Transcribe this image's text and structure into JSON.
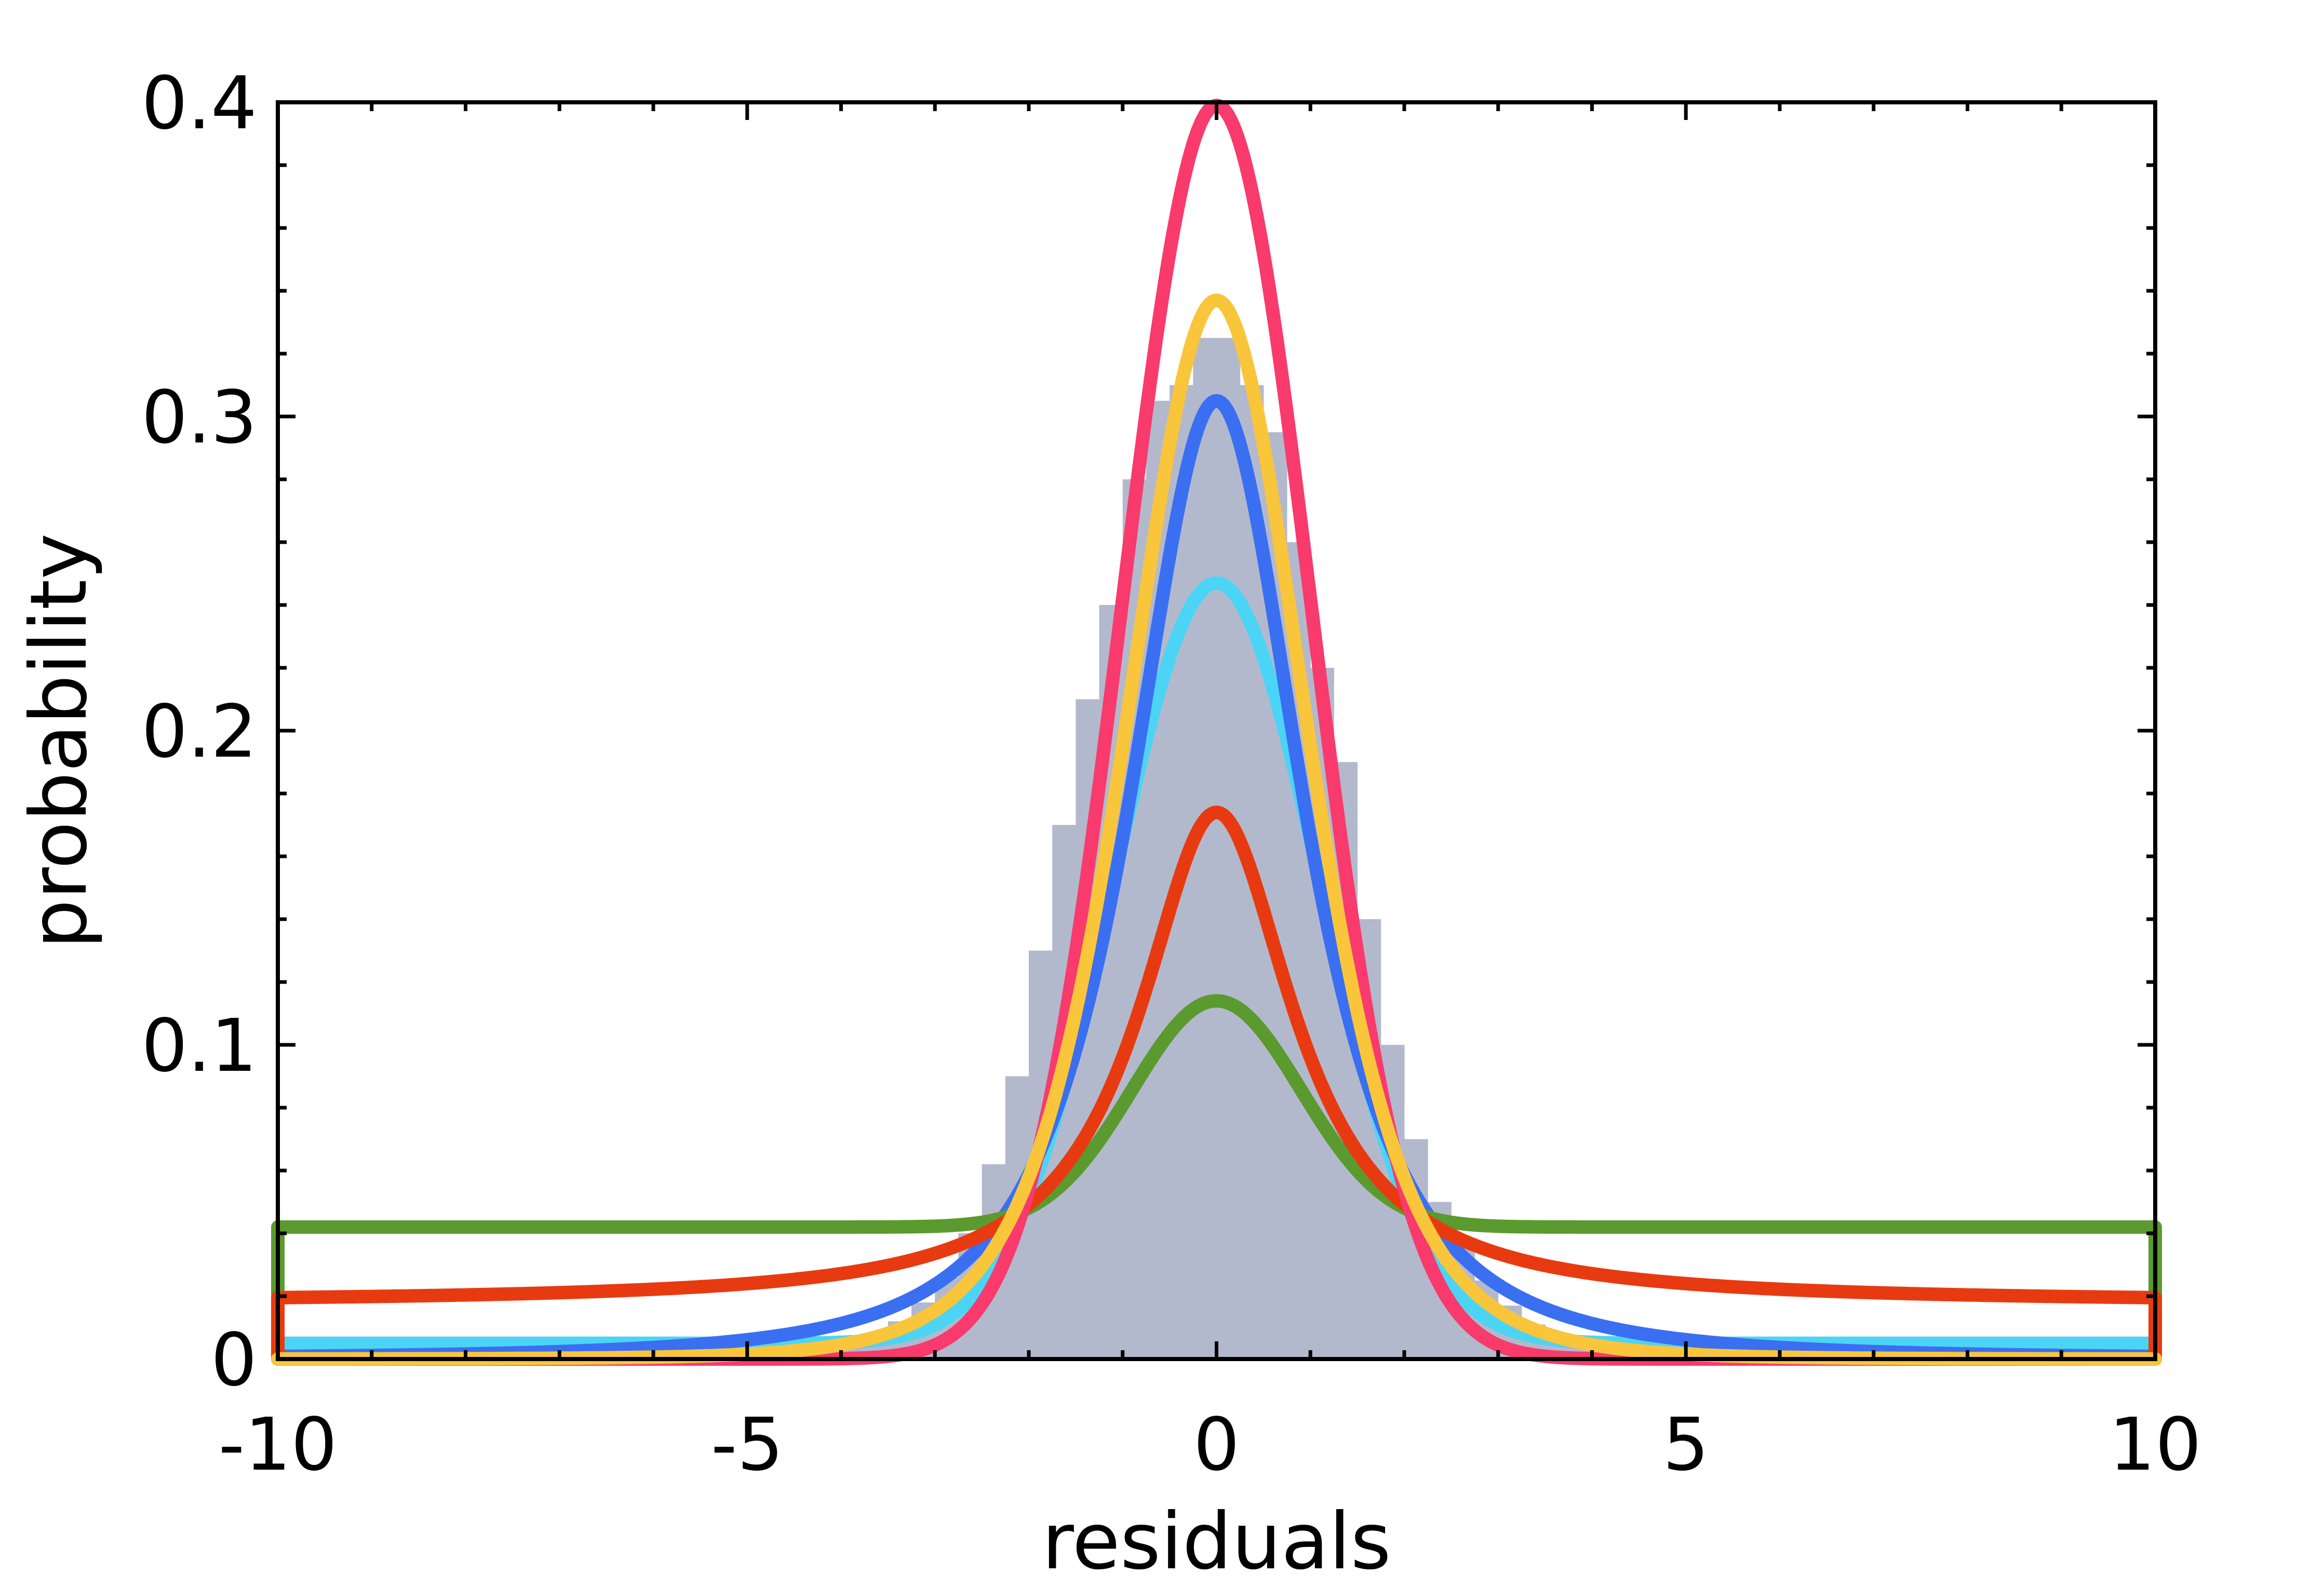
{
  "chart_data": {
    "type": "line",
    "title": "",
    "xlabel": "residuals",
    "ylabel": "probability",
    "xlim": [
      -10,
      10
    ],
    "ylim": [
      0,
      0.4
    ],
    "x_ticks": [
      {
        "value": -10,
        "label": "-10"
      },
      {
        "value": -5,
        "label": "-5"
      },
      {
        "value": 0,
        "label": "0"
      },
      {
        "value": 5,
        "label": "5"
      },
      {
        "value": 10,
        "label": "10"
      }
    ],
    "y_ticks": [
      {
        "value": 0,
        "label": "0"
      },
      {
        "value": 0.1,
        "label": "0.1"
      },
      {
        "value": 0.2,
        "label": "0.2"
      },
      {
        "value": 0.3,
        "label": "0.3"
      },
      {
        "value": 0.4,
        "label": "0.4"
      }
    ],
    "grid": false,
    "legend": "none",
    "histogram": {
      "color": "#b3b9cc",
      "bin_width": 0.25,
      "bin_centers": [
        -4.125,
        -3.875,
        -3.625,
        -3.375,
        -3.125,
        -2.875,
        -2.625,
        -2.375,
        -2.125,
        -1.875,
        -1.625,
        -1.375,
        -1.125,
        -0.875,
        -0.625,
        -0.375,
        -0.125,
        0.125,
        0.375,
        0.625,
        0.875,
        1.125,
        1.375,
        1.625,
        1.875,
        2.125,
        2.375,
        2.625,
        2.875,
        3.125,
        3.375,
        3.625,
        3.875,
        4.125
      ],
      "values": [
        0.003,
        0.005,
        0.008,
        0.012,
        0.018,
        0.026,
        0.04,
        0.062,
        0.09,
        0.13,
        0.17,
        0.21,
        0.24,
        0.28,
        0.305,
        0.31,
        0.325,
        0.325,
        0.31,
        0.295,
        0.26,
        0.22,
        0.19,
        0.14,
        0.1,
        0.07,
        0.05,
        0.036,
        0.025,
        0.017,
        0.011,
        0.007,
        0.004,
        0.002
      ]
    },
    "series": [
      {
        "color": "#4cd4f5",
        "model": "gaussian_plus_uniform",
        "peak": 0.247,
        "sigma": 1.1,
        "floor": 0.005
      },
      {
        "color": "#3a6ff2",
        "model": "student_t",
        "peak": 0.305,
        "scale": 1.0,
        "nu": 2
      },
      {
        "color": "#5b9a2e",
        "model": "gaussian_plus_uniform",
        "peak": 0.114,
        "sigma": 0.9,
        "floor": 0.042
      },
      {
        "color": "#e83a10",
        "model": "cauchy_plus_uniform",
        "peak": 0.174,
        "gamma": 1.0,
        "floor": 0.018
      },
      {
        "color": "#f93a6c",
        "model": "gaussian",
        "peak": 0.399,
        "sigma": 1.0
      },
      {
        "color": "#f9c53b",
        "model": "student_t",
        "peak": 0.337,
        "scale": 1.0,
        "nu": 5
      }
    ]
  }
}
